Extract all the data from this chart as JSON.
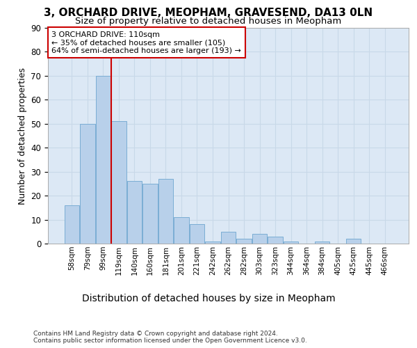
{
  "title": "3, ORCHARD DRIVE, MEOPHAM, GRAVESEND, DA13 0LN",
  "subtitle": "Size of property relative to detached houses in Meopham",
  "xlabel": "Distribution of detached houses by size in Meopham",
  "ylabel": "Number of detached properties",
  "categories": [
    "58sqm",
    "79sqm",
    "99sqm",
    "119sqm",
    "140sqm",
    "160sqm",
    "181sqm",
    "201sqm",
    "221sqm",
    "242sqm",
    "262sqm",
    "282sqm",
    "303sqm",
    "323sqm",
    "344sqm",
    "364sqm",
    "384sqm",
    "405sqm",
    "425sqm",
    "445sqm",
    "466sqm"
  ],
  "values": [
    16,
    50,
    70,
    51,
    26,
    25,
    27,
    11,
    8,
    1,
    5,
    2,
    4,
    3,
    1,
    0,
    1,
    0,
    2,
    0,
    0
  ],
  "bar_color": "#b8d0ea",
  "bar_edge_color": "#7aadd4",
  "vline_x": 2.5,
  "vline_color": "#cc0000",
  "annotation_text": "3 ORCHARD DRIVE: 110sqm\n← 35% of detached houses are smaller (105)\n64% of semi-detached houses are larger (193) →",
  "annotation_box_color": "#ffffff",
  "annotation_box_edge": "#cc0000",
  "ylim": [
    0,
    90
  ],
  "yticks": [
    0,
    10,
    20,
    30,
    40,
    50,
    60,
    70,
    80,
    90
  ],
  "title_fontsize": 11,
  "subtitle_fontsize": 9.5,
  "xlabel_fontsize": 10,
  "ylabel_fontsize": 9,
  "footer": "Contains HM Land Registry data © Crown copyright and database right 2024.\nContains public sector information licensed under the Open Government Licence v3.0.",
  "background_color": "#ffffff",
  "grid_color": "#c8d8e8",
  "axes_bg_color": "#dce8f5"
}
